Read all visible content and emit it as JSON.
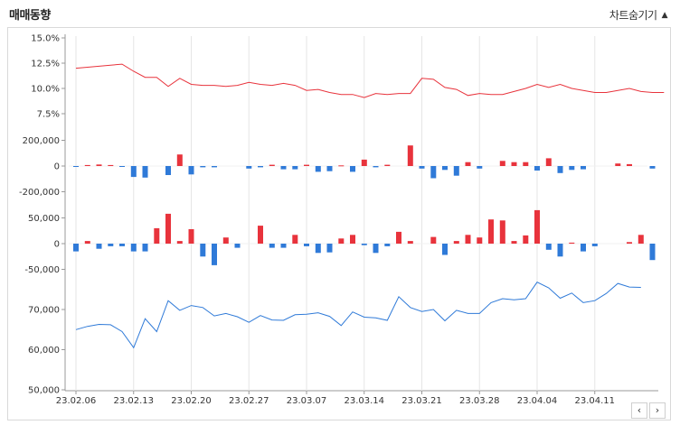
{
  "header": {
    "title": "매매동향",
    "toggle_label": "차트숨기기",
    "toggle_icon": "triangle-up-icon"
  },
  "nav": {
    "prev_label": "‹",
    "next_label": "›"
  },
  "colors": {
    "red": "#e8333c",
    "blue": "#2f7ad8",
    "grid": "#e6e6e6",
    "axis": "#999999"
  },
  "chart_data": [
    {
      "type": "line",
      "panel": "foreign-ownership",
      "ylim": [
        5.0,
        15.0
      ],
      "yticks": [
        "15.0%",
        "12.5%",
        "10.0%",
        "7.5%"
      ],
      "ytick_values": [
        15.0,
        12.5,
        10.0,
        7.5
      ],
      "color": "#e8333c",
      "values": [
        12.0,
        12.1,
        12.2,
        12.3,
        12.4,
        11.7,
        11.1,
        11.1,
        10.2,
        11.0,
        10.4,
        10.3,
        10.3,
        10.2,
        10.3,
        10.6,
        10.4,
        10.3,
        10.5,
        10.3,
        9.8,
        9.9,
        9.6,
        9.4,
        9.4,
        9.1,
        9.5,
        9.4,
        9.5,
        9.5,
        11.0,
        10.9,
        10.1,
        9.9,
        9.3,
        9.5,
        9.4,
        9.4,
        9.7,
        10.0,
        10.4,
        10.1,
        10.4,
        10.0,
        9.8,
        9.6,
        9.6,
        9.8,
        10.0,
        9.7,
        9.6,
        9.6
      ]
    },
    {
      "type": "bar",
      "panel": "institution-net",
      "ylim": [
        -200000,
        200000
      ],
      "yticks": [
        "200,000",
        "0",
        "-200,000"
      ],
      "ytick_values": [
        200000,
        0,
        -200000
      ],
      "positive_color": "#e8333c",
      "negative_color": "#2f7ad8",
      "values": [
        -5000,
        8000,
        12000,
        8000,
        -3000,
        -85000,
        -90000,
        0,
        -70000,
        90000,
        -65000,
        -10000,
        -10000,
        0,
        0,
        -20000,
        -10000,
        10000,
        -25000,
        -25000,
        10000,
        -45000,
        -40000,
        5000,
        -45000,
        50000,
        -10000,
        10000,
        0,
        160000,
        -20000,
        -95000,
        -30000,
        -75000,
        30000,
        -20000,
        0,
        40000,
        30000,
        30000,
        -35000,
        60000,
        -55000,
        -30000,
        -25000,
        0,
        0,
        20000,
        15000,
        0,
        -20000,
        0
      ]
    },
    {
      "type": "bar",
      "panel": "foreign-net",
      "ylim": [
        -60000,
        60000
      ],
      "yticks": [
        "50,000",
        "0",
        "-50,000"
      ],
      "ytick_values": [
        50000,
        0,
        -50000
      ],
      "positive_color": "#e8333c",
      "negative_color": "#2f7ad8",
      "values": [
        -15000,
        5000,
        -10000,
        -5000,
        -5000,
        -15000,
        -15000,
        30000,
        58000,
        5000,
        28000,
        -25000,
        -42000,
        12000,
        -8000,
        0,
        35000,
        -8000,
        -8000,
        17000,
        -5000,
        -18000,
        -17000,
        10000,
        17000,
        -3000,
        -18000,
        -5000,
        23000,
        5000,
        0,
        13000,
        -22000,
        5000,
        17000,
        12000,
        47000,
        45000,
        5000,
        16000,
        65000,
        -12000,
        -25000,
        2000,
        -15000,
        -5000,
        0,
        0,
        3000,
        17000,
        -32000,
        0
      ]
    },
    {
      "type": "line",
      "panel": "price",
      "ylim": [
        50000,
        78000
      ],
      "yticks": [
        "70,000",
        "60,000",
        "50,000"
      ],
      "ytick_values": [
        70000,
        60000,
        50000
      ],
      "color": "#2f7ad8",
      "values": [
        65000,
        65800,
        66300,
        66200,
        64500,
        60500,
        67700,
        64500,
        72200,
        69800,
        71000,
        70500,
        68400,
        69000,
        68200,
        66800,
        68500,
        67400,
        67300,
        68700,
        68800,
        69200,
        68300,
        66000,
        69400,
        68100,
        67900,
        67300,
        73200,
        70500,
        69500,
        70000,
        67200,
        69800,
        69000,
        69000,
        71700,
        72700,
        72400,
        72700,
        76800,
        75400,
        72800,
        74100,
        71700,
        72200,
        74000,
        76500,
        75600,
        75500
      ],
      "x_ticks": [
        "23.02.06",
        "23.02.13",
        "23.02.20",
        "23.02.27",
        "23.03.07",
        "23.03.14",
        "23.03.21",
        "23.03.28",
        "23.04.04",
        "23.04.11"
      ],
      "x_tick_indices": [
        0,
        5,
        10,
        15,
        20,
        25,
        30,
        35,
        40,
        45
      ]
    }
  ]
}
